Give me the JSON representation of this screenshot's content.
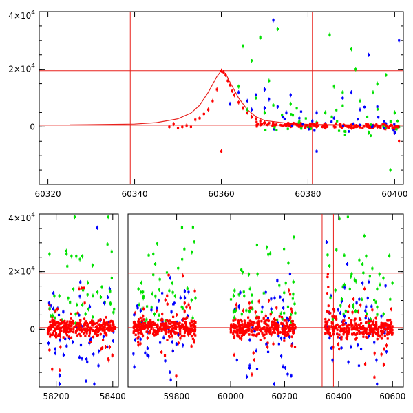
{
  "chart_data": [
    {
      "type": "scatter",
      "title": "",
      "xlabel": "",
      "ylabel": "",
      "xlim": [
        60318,
        60402
      ],
      "ylim": [
        -20000,
        40000
      ],
      "x_ticks": [
        {
          "value": 60320,
          "label": "60320"
        },
        {
          "value": 60340,
          "label": "60340"
        },
        {
          "value": 60360,
          "label": "60360"
        },
        {
          "value": 60380,
          "label": "60380"
        },
        {
          "value": 60400,
          "label": "60400"
        }
      ],
      "y_ticks": [
        {
          "value": 0,
          "label": "0"
        },
        {
          "value": 20000,
          "label": "2×10",
          "exp": "4"
        },
        {
          "value": 40000,
          "label": "4×10",
          "exp": "4"
        }
      ],
      "reference_lines": {
        "vertical_x": [
          60339,
          60381
        ],
        "horizontal_y": [
          19500,
          600
        ],
        "color": "#e8201c"
      },
      "model_curve": {
        "color": "#e8201c",
        "x": [
          60325,
          60335,
          60340,
          60345,
          60350,
          60353,
          60355,
          60357,
          60359,
          60360,
          60361,
          60362,
          60364,
          60366,
          60368,
          60370,
          60375,
          60380,
          60390,
          60400
        ],
        "y": [
          700,
          900,
          1000,
          1500,
          2800,
          4800,
          7500,
          12000,
          17500,
          19500,
          18500,
          15500,
          10000,
          6000,
          3500,
          2200,
          1300,
          900,
          700,
          600
        ]
      },
      "series": [
        {
          "color": "#ff0000",
          "x": [
            60348,
            60349,
            60350,
            60351,
            60352,
            60353,
            60354,
            60355,
            60356,
            60357,
            60358,
            60359,
            60360,
            60360.5,
            60361,
            60361.5,
            60362,
            60362.5,
            60363,
            60364,
            60365,
            60366,
            60367,
            60368,
            60369,
            60370,
            60372,
            60374,
            60376,
            60378,
            60380,
            60382,
            60384,
            60386,
            60388,
            60390,
            60392,
            60394,
            60396,
            60398,
            60400,
            60401,
            60360
          ],
          "y": [
            0,
            1000,
            -500,
            0,
            500,
            0,
            2500,
            3000,
            4500,
            6000,
            9000,
            13000,
            19500,
            19000,
            18000,
            16000,
            14500,
            12500,
            11000,
            8500,
            6500,
            5000,
            3500,
            2800,
            2000,
            1500,
            800,
            500,
            300,
            200,
            0,
            0,
            -200,
            100,
            0,
            -300,
            -100,
            200,
            0,
            -500,
            -2000,
            -5000,
            -8500
          ]
        },
        {
          "color": "#0000ff",
          "x": [
            60362,
            60364,
            60366,
            60367,
            60368,
            60370,
            60371,
            60372,
            60373,
            60375,
            60376,
            60378,
            60380,
            60381,
            60382,
            60384,
            60386,
            60388,
            60390,
            60392,
            60394,
            60396,
            60398,
            60400,
            60401,
            60370,
            60382
          ],
          "y": [
            8000,
            12000,
            9000,
            6000,
            11000,
            13000,
            9500,
            37000,
            7000,
            5000,
            11000,
            3000,
            0,
            2000,
            -8500,
            1000,
            3000,
            10000,
            12000,
            6000,
            25000,
            7000,
            1000,
            -2000,
            30000,
            6500,
            5000
          ]
        },
        {
          "color": "#00e000",
          "x": [
            60364,
            60365,
            60366,
            60367,
            60368,
            60369,
            60370,
            60371,
            60372,
            60373,
            60374,
            60376,
            60378,
            60380,
            60382,
            60384,
            60385,
            60386,
            60388,
            60390,
            60391,
            60392,
            60394,
            60395,
            60396,
            60398,
            60399,
            60400,
            60401
          ],
          "y": [
            14000,
            28000,
            6000,
            23000,
            10000,
            31000,
            5000,
            16000,
            7500,
            34000,
            4000,
            8000,
            2000,
            0,
            1500,
            5000,
            32000,
            14000,
            12000,
            27000,
            20000,
            9000,
            -2000,
            12000,
            15000,
            18000,
            -15000,
            5000,
            0
          ]
        }
      ]
    },
    {
      "type": "scatter",
      "title": "",
      "xlabel": "",
      "ylabel": "",
      "xlim": [
        58140,
        60640
      ],
      "ylim": [
        -20000,
        40000
      ],
      "x_breaks": [
        {
          "from": 58420,
          "to": 59620
        }
      ],
      "x_ticks": [
        {
          "value": 58200,
          "label": "58200"
        },
        {
          "value": 58400,
          "label": "58400"
        },
        {
          "value": 59800,
          "label": "59800"
        },
        {
          "value": 60000,
          "label": "60000"
        },
        {
          "value": 60200,
          "label": "60200"
        },
        {
          "value": 60400,
          "label": "60400"
        },
        {
          "value": 60600,
          "label": "60600"
        }
      ],
      "y_ticks": [
        {
          "value": 0,
          "label": "0"
        },
        {
          "value": 20000,
          "label": "2×10",
          "exp": "4"
        },
        {
          "value": 40000,
          "label": "4×10",
          "exp": "4"
        }
      ],
      "reference_lines": {
        "vertical_x": [
          60339,
          60381
        ],
        "horizontal_y": [
          19500,
          600
        ],
        "color": "#e8201c"
      },
      "observing_seasons": [
        {
          "x_start": 58170,
          "x_end": 58410
        },
        {
          "x_start": 59640,
          "x_end": 59870
        },
        {
          "x_start": 60000,
          "x_end": 60240
        },
        {
          "x_start": 60350,
          "x_end": 60600
        }
      ],
      "series": [
        {
          "color": "#00e000"
        },
        {
          "color": "#0000ff"
        },
        {
          "color": "#ff0000"
        }
      ]
    }
  ]
}
